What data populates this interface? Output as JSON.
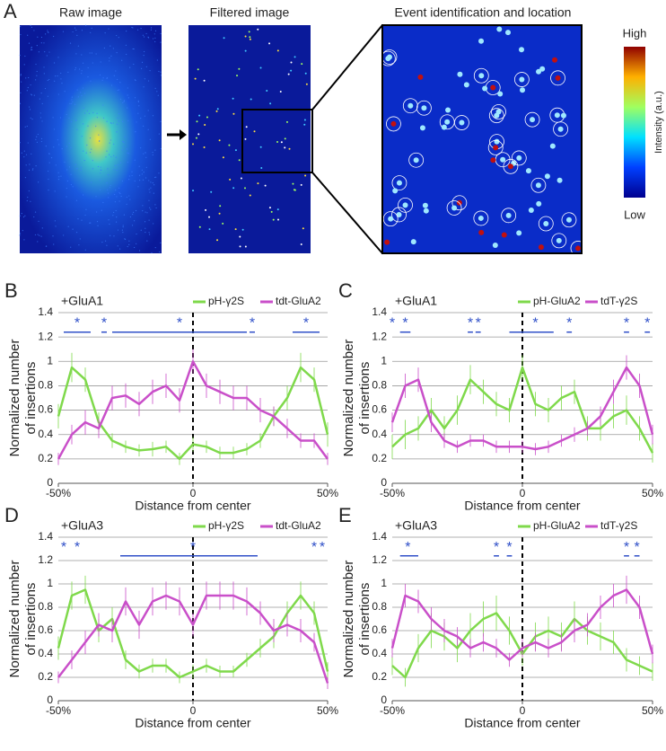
{
  "panel_a": {
    "label": "A",
    "titles": [
      "Raw image",
      "Filtered image",
      "Event identification and location"
    ],
    "colorbar": {
      "high": "High",
      "low": "Low",
      "label": "Intensity (a.u.)"
    }
  },
  "chart_data": [
    {
      "type": "line",
      "panel": "B",
      "subtitle": "+GluA1",
      "ylabel": [
        "Normalized number",
        "of insertions"
      ],
      "xlabel": "Distance from center",
      "xlim": [
        -50,
        50
      ],
      "ylim": [
        0,
        1.4
      ],
      "xticks": [
        {
          "value": -50,
          "label": "-50%"
        },
        0,
        {
          "value": 50,
          "label": "50%"
        }
      ],
      "yticks": [
        0,
        0.2,
        0.4,
        0.6,
        0.8,
        1,
        1.2,
        1.4
      ],
      "grid": true,
      "center_line": true,
      "x": [
        -50,
        -45,
        -40,
        -35,
        -30,
        -25,
        -20,
        -15,
        -10,
        -5,
        0,
        5,
        10,
        15,
        20,
        25,
        30,
        35,
        40,
        45,
        50
      ],
      "series": [
        {
          "name": "pH-γ2S",
          "color": "#7fd94b",
          "values": [
            0.55,
            0.95,
            0.85,
            0.5,
            0.35,
            0.3,
            0.27,
            0.28,
            0.3,
            0.2,
            0.32,
            0.3,
            0.25,
            0.25,
            0.28,
            0.35,
            0.55,
            0.7,
            0.95,
            0.85,
            0.4
          ],
          "errors": [
            0.1,
            0.12,
            0.1,
            0.08,
            0.06,
            0.05,
            0.05,
            0.06,
            0.05,
            0.05,
            0.06,
            0.05,
            0.05,
            0.05,
            0.05,
            0.06,
            0.08,
            0.1,
            0.12,
            0.1,
            0.1
          ]
        },
        {
          "name": "tdt-GluA2",
          "color": "#c94fc9",
          "values": [
            0.2,
            0.4,
            0.5,
            0.45,
            0.7,
            0.72,
            0.65,
            0.75,
            0.8,
            0.68,
            1,
            0.8,
            0.75,
            0.7,
            0.7,
            0.6,
            0.55,
            0.45,
            0.35,
            0.35,
            0.2
          ],
          "errors": [
            0.05,
            0.08,
            0.1,
            0.08,
            0.1,
            0.1,
            0.1,
            0.1,
            0.1,
            0.1,
            0.1,
            0.1,
            0.1,
            0.1,
            0.1,
            0.1,
            0.08,
            0.08,
            0.06,
            0.06,
            0.05
          ]
        }
      ],
      "significance": [
        {
          "label": "*",
          "x": -43,
          "from": -48,
          "to": -38
        },
        {
          "label": "*",
          "x": -33,
          "from": -34,
          "to": -32
        },
        {
          "label": "*",
          "x": -5,
          "from": -30,
          "to": 20
        },
        {
          "label": "*",
          "x": 22,
          "from": 21,
          "to": 23
        },
        {
          "label": "*",
          "x": 42,
          "from": 37,
          "to": 47
        }
      ]
    },
    {
      "type": "line",
      "panel": "C",
      "subtitle": "+GluA1",
      "ylabel": [
        "Normalized number",
        "of insertions"
      ],
      "xlabel": "Distance from center",
      "xlim": [
        -50,
        50
      ],
      "ylim": [
        0,
        1.4
      ],
      "xticks": [
        {
          "value": -50,
          "label": "-50%"
        },
        0,
        {
          "value": 50,
          "label": "50%"
        }
      ],
      "yticks": [
        0,
        0.2,
        0.4,
        0.6,
        0.8,
        1,
        1.2,
        1.4
      ],
      "grid": true,
      "center_line": true,
      "x": [
        -50,
        -45,
        -40,
        -35,
        -30,
        -25,
        -20,
        -15,
        -10,
        -5,
        0,
        5,
        10,
        15,
        20,
        25,
        30,
        35,
        40,
        45,
        50
      ],
      "series": [
        {
          "name": "pH-GluA2",
          "color": "#7fd94b",
          "values": [
            0.3,
            0.4,
            0.45,
            0.6,
            0.45,
            0.6,
            0.85,
            0.75,
            0.65,
            0.6,
            0.95,
            0.65,
            0.6,
            0.7,
            0.75,
            0.45,
            0.45,
            0.55,
            0.6,
            0.45,
            0.25
          ],
          "errors": [
            0.1,
            0.12,
            0.1,
            0.1,
            0.1,
            0.12,
            0.12,
            0.1,
            0.1,
            0.1,
            0.1,
            0.1,
            0.1,
            0.1,
            0.1,
            0.1,
            0.1,
            0.1,
            0.12,
            0.1,
            0.08
          ]
        },
        {
          "name": "tdT-γ2S",
          "color": "#c94fc9",
          "values": [
            0.5,
            0.8,
            0.85,
            0.5,
            0.35,
            0.3,
            0.35,
            0.35,
            0.3,
            0.3,
            0.3,
            0.28,
            0.3,
            0.35,
            0.4,
            0.45,
            0.55,
            0.75,
            0.95,
            0.8,
            0.4
          ],
          "errors": [
            0.08,
            0.1,
            0.1,
            0.08,
            0.06,
            0.05,
            0.05,
            0.05,
            0.05,
            0.05,
            0.05,
            0.05,
            0.05,
            0.05,
            0.06,
            0.06,
            0.08,
            0.1,
            0.1,
            0.1,
            0.08
          ]
        }
      ],
      "significance": [
        {
          "label": "*",
          "x": -50
        },
        {
          "label": "*",
          "x": -45,
          "from": -47,
          "to": -43
        },
        {
          "label": "*",
          "x": -20,
          "from": -21,
          "to": -19
        },
        {
          "label": "*",
          "x": -17,
          "from": -18,
          "to": -16
        },
        {
          "label": "*",
          "x": 5,
          "from": -5,
          "to": 12
        },
        {
          "label": "*",
          "x": 18,
          "from": 17,
          "to": 19
        },
        {
          "label": "*",
          "x": 40,
          "from": 39,
          "to": 41
        },
        {
          "label": "*",
          "x": 48,
          "from": 47,
          "to": 49
        }
      ]
    },
    {
      "type": "line",
      "panel": "D",
      "subtitle": "+GluA3",
      "ylabel": [
        "Normalized number",
        "of insertions"
      ],
      "xlabel": "Distance from center",
      "xlim": [
        -50,
        50
      ],
      "ylim": [
        0,
        1.4
      ],
      "xticks": [
        {
          "value": -50,
          "label": "-50%"
        },
        0,
        {
          "value": 50,
          "label": "50%"
        }
      ],
      "yticks": [
        0,
        0.2,
        0.4,
        0.6,
        0.8,
        1,
        1.2,
        1.4
      ],
      "grid": true,
      "center_line": true,
      "x": [
        -50,
        -45,
        -40,
        -35,
        -30,
        -25,
        -20,
        -15,
        -10,
        -5,
        0,
        5,
        10,
        15,
        20,
        25,
        30,
        35,
        40,
        45,
        50
      ],
      "series": [
        {
          "name": "pH-γ2S",
          "color": "#7fd94b",
          "values": [
            0.45,
            0.9,
            0.95,
            0.6,
            0.7,
            0.35,
            0.25,
            0.3,
            0.3,
            0.2,
            0.25,
            0.3,
            0.25,
            0.25,
            0.35,
            0.45,
            0.55,
            0.75,
            0.9,
            0.75,
            0.25
          ],
          "errors": [
            0.1,
            0.12,
            0.12,
            0.1,
            0.1,
            0.08,
            0.06,
            0.06,
            0.06,
            0.05,
            0.06,
            0.06,
            0.05,
            0.05,
            0.06,
            0.08,
            0.1,
            0.1,
            0.12,
            0.1,
            0.08
          ]
        },
        {
          "name": "tdt-GluA2",
          "color": "#c94fc9",
          "values": [
            0.2,
            0.35,
            0.5,
            0.65,
            0.6,
            0.85,
            0.65,
            0.85,
            0.9,
            0.85,
            0.65,
            0.9,
            0.9,
            0.9,
            0.85,
            0.75,
            0.6,
            0.65,
            0.6,
            0.5,
            0.15
          ],
          "errors": [
            0.05,
            0.08,
            0.1,
            0.1,
            0.1,
            0.12,
            0.12,
            0.12,
            0.12,
            0.12,
            0.1,
            0.12,
            0.12,
            0.12,
            0.12,
            0.1,
            0.1,
            0.1,
            0.1,
            0.08,
            0.05
          ]
        }
      ],
      "significance": [
        {
          "label": "*",
          "x": -48
        },
        {
          "label": "*",
          "x": -43
        },
        {
          "label": "*",
          "x": 0,
          "from": -27,
          "to": 24
        },
        {
          "label": "*",
          "x": 45
        },
        {
          "label": "*",
          "x": 48
        }
      ]
    },
    {
      "type": "line",
      "panel": "E",
      "subtitle": "+GluA3",
      "ylabel": [
        "Normalized number",
        "of insertions"
      ],
      "xlabel": "Distance from center",
      "xlim": [
        -50,
        50
      ],
      "ylim": [
        0,
        1.4
      ],
      "xticks": [
        {
          "value": -50,
          "label": "-50%"
        },
        0,
        {
          "value": 50,
          "label": "50%"
        }
      ],
      "yticks": [
        0,
        0.2,
        0.4,
        0.6,
        0.8,
        1,
        1.2,
        1.4
      ],
      "grid": true,
      "center_line": true,
      "x": [
        -50,
        -45,
        -40,
        -35,
        -30,
        -25,
        -20,
        -15,
        -10,
        -5,
        0,
        5,
        10,
        15,
        20,
        25,
        30,
        35,
        40,
        45,
        50
      ],
      "series": [
        {
          "name": "pH-GluA2",
          "color": "#7fd94b",
          "values": [
            0.3,
            0.2,
            0.45,
            0.6,
            0.55,
            0.45,
            0.6,
            0.7,
            0.75,
            0.6,
            0.4,
            0.55,
            0.6,
            0.55,
            0.7,
            0.6,
            0.55,
            0.5,
            0.35,
            0.3,
            0.25
          ],
          "errors": [
            0.08,
            0.08,
            0.12,
            0.15,
            0.12,
            0.12,
            0.15,
            0.15,
            0.15,
            0.12,
            0.1,
            0.12,
            0.12,
            0.12,
            0.15,
            0.12,
            0.12,
            0.1,
            0.1,
            0.08,
            0.08
          ]
        },
        {
          "name": "tdT-γ2S",
          "color": "#c94fc9",
          "values": [
            0.45,
            0.9,
            0.85,
            0.7,
            0.6,
            0.55,
            0.45,
            0.5,
            0.45,
            0.35,
            0.45,
            0.5,
            0.45,
            0.5,
            0.6,
            0.65,
            0.8,
            0.9,
            0.95,
            0.8,
            0.4
          ],
          "errors": [
            0.08,
            0.1,
            0.1,
            0.1,
            0.1,
            0.08,
            0.08,
            0.08,
            0.08,
            0.06,
            0.08,
            0.08,
            0.08,
            0.08,
            0.1,
            0.1,
            0.1,
            0.1,
            0.12,
            0.1,
            0.08
          ]
        }
      ],
      "significance": [
        {
          "label": "*",
          "x": -44,
          "from": -47,
          "to": -40
        },
        {
          "label": "*",
          "x": -10,
          "from": -11,
          "to": -9
        },
        {
          "label": "*",
          "x": -5,
          "from": -6,
          "to": -4
        },
        {
          "label": "*",
          "x": 40,
          "from": 39,
          "to": 41
        },
        {
          "label": "*",
          "x": 44,
          "from": 43,
          "to": 45
        }
      ]
    }
  ]
}
